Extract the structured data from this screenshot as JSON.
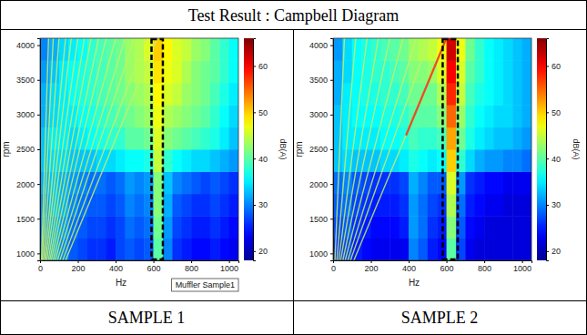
{
  "title": "Test Result : Campbell Diagram",
  "chart_data": [
    {
      "type": "heatmap",
      "caption": "SAMPLE 1",
      "x_label": "Hz",
      "y_label": "rpm",
      "annotation": "Muffler Sample1",
      "xlim": [
        0,
        1050
      ],
      "xticks": [
        0,
        200,
        400,
        600,
        800,
        1000
      ],
      "ylim": [
        900,
        4100
      ],
      "yticks": [
        1000,
        1500,
        2000,
        2500,
        3000,
        3500,
        4000
      ],
      "x_edges": [
        0,
        50,
        100,
        150,
        200,
        250,
        300,
        350,
        400,
        450,
        500,
        550,
        600,
        650,
        700,
        750,
        800,
        850,
        900,
        950,
        1000,
        1050
      ],
      "y_edges": [
        900,
        1220,
        1540,
        1860,
        2180,
        2500,
        2820,
        3140,
        3460,
        3780,
        4100
      ],
      "cells": [
        [
          30,
          32,
          30,
          28,
          27,
          26,
          26,
          25,
          27,
          28,
          27,
          28,
          40,
          30,
          26,
          25,
          24,
          24,
          25,
          24,
          23
        ],
        [
          31,
          32,
          31,
          29,
          28,
          27,
          27,
          26,
          27,
          29,
          28,
          29,
          41,
          31,
          27,
          26,
          25,
          25,
          26,
          25,
          24
        ],
        [
          31,
          33,
          32,
          30,
          29,
          28,
          28,
          27,
          28,
          30,
          29,
          30,
          42,
          32,
          28,
          27,
          26,
          26,
          27,
          26,
          25
        ],
        [
          32,
          33,
          32,
          31,
          30,
          29,
          29,
          28,
          29,
          31,
          30,
          31,
          42,
          33,
          30,
          29,
          28,
          27,
          28,
          27,
          26
        ],
        [
          33,
          34,
          34,
          33,
          33,
          33,
          34,
          34,
          35,
          36,
          36,
          37,
          45,
          38,
          36,
          35,
          34,
          34,
          33,
          32,
          31
        ],
        [
          33,
          35,
          35,
          34,
          35,
          36,
          37,
          38,
          38,
          40,
          40,
          41,
          46,
          42,
          41,
          40,
          39,
          38,
          37,
          35,
          33
        ],
        [
          32,
          34,
          35,
          35,
          36,
          37,
          38,
          39,
          40,
          41,
          42,
          43,
          47,
          44,
          43,
          42,
          41,
          40,
          38,
          36,
          34
        ],
        [
          32,
          34,
          35,
          36,
          37,
          38,
          39,
          40,
          41,
          42,
          43,
          44,
          48,
          46,
          45,
          43,
          42,
          41,
          39,
          37,
          35
        ],
        [
          31,
          33,
          35,
          36,
          37,
          38,
          39,
          40,
          41,
          43,
          44,
          45,
          49,
          47,
          46,
          44,
          42,
          41,
          40,
          38,
          36
        ],
        [
          30,
          32,
          34,
          35,
          36,
          38,
          39,
          40,
          41,
          43,
          44,
          46,
          50,
          48,
          46,
          45,
          43,
          42,
          40,
          38,
          36
        ]
      ],
      "colorbar": {
        "label": "dB(A)",
        "range": [
          18,
          66
        ],
        "ticks": [
          20,
          30,
          40,
          50,
          60
        ]
      },
      "highlight_x": [
        590,
        650
      ],
      "color": "#c8f064",
      "series": [
        {
          "x": [
            8,
            45
          ],
          "values": [
            900,
            4100
          ]
        },
        {
          "x": [
            12,
            70
          ],
          "values": [
            900,
            4100
          ]
        },
        {
          "x": [
            18,
            100
          ],
          "values": [
            900,
            4100
          ]
        },
        {
          "x": [
            24,
            135
          ],
          "values": [
            900,
            4100
          ]
        },
        {
          "x": [
            30,
            165
          ],
          "values": [
            900,
            4100
          ]
        },
        {
          "x": [
            36,
            200
          ],
          "values": [
            900,
            4100
          ]
        },
        {
          "x": [
            44,
            235
          ],
          "values": [
            900,
            4100
          ]
        },
        {
          "x": [
            52,
            270
          ],
          "values": [
            900,
            4100
          ]
        },
        {
          "x": [
            60,
            310
          ],
          "values": [
            900,
            4100
          ]
        },
        {
          "x": [
            70,
            350
          ],
          "values": [
            900,
            4100
          ]
        },
        {
          "x": [
            80,
            400
          ],
          "values": [
            900,
            4100
          ]
        },
        {
          "x": [
            92,
            450
          ],
          "values": [
            900,
            4100
          ]
        },
        {
          "x": [
            105,
            500
          ],
          "values": [
            900,
            4100
          ]
        },
        {
          "x": [
            120,
            560
          ],
          "values": [
            900,
            4100
          ]
        },
        {
          "x": [
            135,
            620
          ],
          "values": [
            900,
            4100
          ]
        }
      ]
    },
    {
      "type": "heatmap",
      "caption": "SAMPLE 2",
      "x_label": "Hz",
      "y_label": "rpm",
      "xlim": [
        0,
        1050
      ],
      "xticks": [
        0,
        200,
        400,
        600,
        800,
        1000
      ],
      "ylim": [
        900,
        4100
      ],
      "yticks": [
        1000,
        1500,
        2000,
        2500,
        3000,
        3500,
        4000
      ],
      "x_edges": [
        0,
        50,
        100,
        150,
        200,
        250,
        300,
        350,
        400,
        450,
        500,
        550,
        600,
        650,
        700,
        750,
        800,
        850,
        900,
        950,
        1000,
        1050
      ],
      "y_edges": [
        900,
        1220,
        1540,
        1860,
        2180,
        2500,
        2820,
        3140,
        3460,
        3780,
        4100
      ],
      "cells": [
        [
          26,
          27,
          25,
          24,
          23,
          23,
          23,
          23,
          30,
          28,
          25,
          24,
          40,
          27,
          23,
          22,
          22,
          22,
          22,
          22,
          22
        ],
        [
          27,
          28,
          26,
          25,
          24,
          24,
          24,
          25,
          31,
          29,
          26,
          25,
          42,
          28,
          24,
          23,
          22,
          22,
          22,
          22,
          22
        ],
        [
          28,
          29,
          27,
          26,
          25,
          25,
          25,
          26,
          31,
          29,
          27,
          26,
          44,
          29,
          25,
          24,
          23,
          23,
          22,
          22,
          22
        ],
        [
          29,
          30,
          28,
          27,
          26,
          26,
          26,
          27,
          32,
          30,
          28,
          28,
          46,
          31,
          26,
          25,
          24,
          24,
          23,
          23,
          23
        ],
        [
          33,
          34,
          33,
          33,
          33,
          34,
          34,
          35,
          37,
          36,
          35,
          36,
          50,
          38,
          34,
          32,
          31,
          31,
          30,
          30,
          29
        ],
        [
          33,
          35,
          35,
          35,
          35,
          36,
          36,
          37,
          39,
          38,
          38,
          39,
          52,
          41,
          37,
          35,
          34,
          33,
          33,
          32,
          31
        ],
        [
          33,
          35,
          36,
          36,
          36,
          37,
          37,
          38,
          40,
          40,
          40,
          42,
          55,
          43,
          38,
          36,
          35,
          34,
          34,
          33,
          32
        ],
        [
          32,
          35,
          36,
          37,
          37,
          38,
          38,
          39,
          41,
          41,
          41,
          44,
          58,
          45,
          39,
          37,
          36,
          35,
          34,
          33,
          32
        ],
        [
          32,
          34,
          36,
          37,
          38,
          38,
          39,
          40,
          42,
          42,
          43,
          46,
          60,
          46,
          40,
          38,
          36,
          35,
          34,
          33,
          32
        ],
        [
          31,
          34,
          36,
          37,
          38,
          39,
          40,
          41,
          43,
          44,
          45,
          47,
          62,
          47,
          41,
          38,
          36,
          35,
          34,
          33,
          32
        ]
      ],
      "colorbar": {
        "label": "dB(A)",
        "range": [
          18,
          66
        ],
        "ticks": [
          20,
          30,
          40,
          50,
          60
        ]
      },
      "highlight_x": [
        580,
        660
      ],
      "color": "#c8f064",
      "series": [
        {
          "x": [
            10,
            60
          ],
          "values": [
            900,
            4100
          ]
        },
        {
          "x": [
            20,
            120
          ],
          "values": [
            900,
            4100
          ]
        },
        {
          "x": [
            30,
            180
          ],
          "values": [
            900,
            4100
          ]
        },
        {
          "x": [
            40,
            240
          ],
          "values": [
            900,
            4100
          ]
        },
        {
          "x": [
            52,
            300
          ],
          "values": [
            900,
            4100
          ]
        },
        {
          "x": [
            64,
            370
          ],
          "values": [
            900,
            4100
          ]
        },
        {
          "x": [
            78,
            440
          ],
          "values": [
            900,
            4100
          ]
        },
        {
          "x": [
            92,
            510
          ],
          "values": [
            900,
            4100
          ]
        },
        {
          "x": [
            110,
            600
          ],
          "values": [
            900,
            4100
          ]
        },
        {
          "x": [
            386,
            600
          ],
          "values": [
            2700,
            4100
          ],
          "color": "#ff2a10"
        }
      ]
    }
  ]
}
